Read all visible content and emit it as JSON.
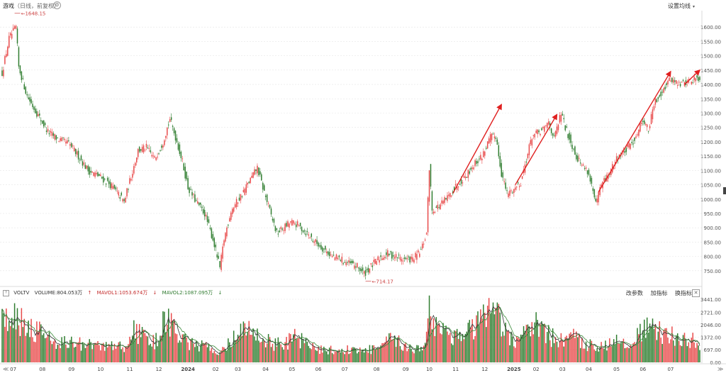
{
  "header": {
    "title": "游戏",
    "subtitle": "（日线，前复权）",
    "settings_label": "设置均线",
    "caret": "▾",
    "gear_glyph": "⚙"
  },
  "volume_legend": {
    "indicator_name": "VOLTV",
    "volume_text": "VOLUME:804.053万",
    "volume_arrow": "↑",
    "mavol1_text": "MAVOL1:1053.674万",
    "mavol1_arrow": "↓",
    "mavol2_text": "MAVOL2:1087.095万",
    "mavol2_arrow": "↓",
    "help_glyph": "?"
  },
  "volume_tools": {
    "change_params": "改参数",
    "add_indicator": "加指标",
    "swap_indicator": "换指标",
    "close_glyph": "✕"
  },
  "nav": {
    "left": "≪",
    "right": "≫"
  },
  "colors": {
    "up": "#e84a4a",
    "down": "#2f7d2f",
    "arrow": "#e02020",
    "grid": "#e6e6e6",
    "ma1": "#333333",
    "ma2": "#3a8a3a"
  },
  "chart_data": [
    {
      "type": "candlestick",
      "price_axis": {
        "ylim": [
          710,
          1650
        ],
        "ticks": [
          750,
          800,
          850,
          900,
          950,
          1000,
          1050,
          1100,
          1150,
          1200,
          1250,
          1300,
          1350,
          1400,
          1450,
          1500,
          1550,
          1600
        ],
        "tick_labels": [
          "750.00",
          "800.00",
          "850.00",
          "900.00",
          "950.00",
          "1000.00",
          "1050.00",
          "1100.00",
          "1150.00",
          "1200.00",
          "1250.00",
          "1300.00",
          "1350.00",
          "1400.00",
          "1450.00",
          "1500.00",
          "1550.00",
          "1600.00"
        ]
      },
      "time_axis": {
        "months": [
          {
            "label": "07",
            "idx": 8
          },
          {
            "label": "08",
            "idx": 29
          },
          {
            "label": "09",
            "idx": 50
          },
          {
            "label": "10",
            "idx": 71
          },
          {
            "label": "11",
            "idx": 92
          },
          {
            "label": "12",
            "idx": 113
          },
          {
            "label": "2024",
            "idx": 134
          },
          {
            "label": "02",
            "idx": 154
          },
          {
            "label": "03",
            "idx": 170
          },
          {
            "label": "04",
            "idx": 190
          },
          {
            "label": "05",
            "idx": 209
          },
          {
            "label": "06",
            "idx": 228
          },
          {
            "label": "07",
            "idx": 247
          },
          {
            "label": "08",
            "idx": 270
          },
          {
            "label": "09",
            "idx": 291
          },
          {
            "label": "10",
            "idx": 308
          },
          {
            "label": "11",
            "idx": 327
          },
          {
            "label": "12",
            "idx": 348
          },
          {
            "label": "2025",
            "idx": 369
          },
          {
            "label": "02",
            "idx": 385
          },
          {
            "label": "03",
            "idx": 404
          },
          {
            "label": "04",
            "idx": 423
          },
          {
            "label": "05",
            "idx": 443
          },
          {
            "label": "06",
            "idx": 462
          },
          {
            "label": "07",
            "idx": 482
          }
        ]
      },
      "close_keypoints": [
        [
          0,
          1440
        ],
        [
          5,
          1560
        ],
        [
          10,
          1600
        ],
        [
          12,
          1460
        ],
        [
          18,
          1360
        ],
        [
          25,
          1300
        ],
        [
          33,
          1235
        ],
        [
          40,
          1210
        ],
        [
          48,
          1195
        ],
        [
          55,
          1150
        ],
        [
          62,
          1100
        ],
        [
          70,
          1080
        ],
        [
          78,
          1050
        ],
        [
          85,
          1010
        ],
        [
          88,
          990
        ],
        [
          93,
          1080
        ],
        [
          98,
          1170
        ],
        [
          104,
          1180
        ],
        [
          110,
          1140
        ],
        [
          116,
          1200
        ],
        [
          121,
          1280
        ],
        [
          126,
          1200
        ],
        [
          130,
          1130
        ],
        [
          134,
          1040
        ],
        [
          140,
          990
        ],
        [
          146,
          950
        ],
        [
          152,
          860
        ],
        [
          157,
          760
        ],
        [
          160,
          860
        ],
        [
          165,
          960
        ],
        [
          172,
          1010
        ],
        [
          178,
          1060
        ],
        [
          184,
          1110
        ],
        [
          188,
          1040
        ],
        [
          193,
          960
        ],
        [
          198,
          880
        ],
        [
          203,
          900
        ],
        [
          208,
          920
        ],
        [
          213,
          910
        ],
        [
          220,
          880
        ],
        [
          226,
          850
        ],
        [
          232,
          825
        ],
        [
          238,
          800
        ],
        [
          244,
          790
        ],
        [
          250,
          775
        ],
        [
          256,
          765
        ],
        [
          261,
          740
        ],
        [
          266,
          765
        ],
        [
          272,
          795
        ],
        [
          278,
          810
        ],
        [
          284,
          800
        ],
        [
          290,
          790
        ],
        [
          296,
          790
        ],
        [
          302,
          820
        ],
        [
          306,
          880
        ],
        [
          308,
          1110
        ],
        [
          310,
          960
        ],
        [
          316,
          980
        ],
        [
          322,
          1010
        ],
        [
          328,
          1050
        ],
        [
          334,
          1080
        ],
        [
          340,
          1120
        ],
        [
          346,
          1150
        ],
        [
          352,
          1215
        ],
        [
          356,
          1220
        ],
        [
          360,
          1090
        ],
        [
          364,
          1020
        ],
        [
          368,
          1030
        ],
        [
          374,
          1060
        ],
        [
          378,
          1140
        ],
        [
          382,
          1220
        ],
        [
          386,
          1230
        ],
        [
          390,
          1240
        ],
        [
          394,
          1270
        ],
        [
          398,
          1210
        ],
        [
          403,
          1300
        ],
        [
          406,
          1250
        ],
        [
          410,
          1200
        ],
        [
          414,
          1150
        ],
        [
          418,
          1120
        ],
        [
          422,
          1100
        ],
        [
          425,
          1050
        ],
        [
          428,
          980
        ],
        [
          432,
          1050
        ],
        [
          438,
          1090
        ],
        [
          444,
          1150
        ],
        [
          450,
          1170
        ],
        [
          456,
          1210
        ],
        [
          462,
          1280
        ],
        [
          466,
          1240
        ],
        [
          470,
          1330
        ],
        [
          476,
          1380
        ],
        [
          482,
          1420
        ],
        [
          488,
          1400
        ],
        [
          494,
          1410
        ],
        [
          500,
          1420
        ],
        [
          503,
          1425
        ]
      ],
      "annotations": [
        {
          "kind": "max",
          "label": "1648.15",
          "price": 1648.15,
          "idx": 9
        },
        {
          "kind": "min",
          "label": "714.17",
          "price": 714.17,
          "idx": 262
        }
      ],
      "trend_arrows": [
        {
          "from": [
            325,
            1020
          ],
          "to": [
            360,
            1330
          ]
        },
        {
          "from": [
            370,
            1050
          ],
          "to": [
            400,
            1295
          ]
        },
        {
          "from": [
            430,
            1025
          ],
          "to": [
            482,
            1445
          ]
        },
        {
          "from": [
            492,
            1400
          ],
          "to": [
            503,
            1450
          ]
        }
      ]
    },
    {
      "type": "bar",
      "title": "VOLTV",
      "ylim": [
        0,
        3441
      ],
      "ticks": [
        0,
        697,
        1372,
        2046,
        2721,
        3441
      ],
      "tick_labels": [
        "0.00",
        "697.00",
        "1372.00",
        "2046.00",
        "2721.00",
        "3441.00"
      ],
      "volume_keypoints": [
        [
          0,
          2600
        ],
        [
          10,
          2500
        ],
        [
          20,
          2000
        ],
        [
          30,
          1500
        ],
        [
          40,
          1150
        ],
        [
          50,
          1050
        ],
        [
          60,
          950
        ],
        [
          70,
          900
        ],
        [
          80,
          850
        ],
        [
          90,
          900
        ],
        [
          95,
          1700
        ],
        [
          100,
          1500
        ],
        [
          110,
          1100
        ],
        [
          118,
          2300
        ],
        [
          125,
          1900
        ],
        [
          130,
          1200
        ],
        [
          140,
          900
        ],
        [
          150,
          800
        ],
        [
          158,
          600
        ],
        [
          165,
          1100
        ],
        [
          172,
          1900
        ],
        [
          180,
          1600
        ],
        [
          188,
          1300
        ],
        [
          195,
          1050
        ],
        [
          205,
          1000
        ],
        [
          212,
          1500
        ],
        [
          220,
          900
        ],
        [
          230,
          700
        ],
        [
          240,
          650
        ],
        [
          250,
          700
        ],
        [
          260,
          650
        ],
        [
          270,
          750
        ],
        [
          280,
          1200
        ],
        [
          290,
          950
        ],
        [
          300,
          700
        ],
        [
          305,
          1200
        ],
        [
          308,
          2900
        ],
        [
          312,
          2100
        ],
        [
          320,
          1700
        ],
        [
          330,
          1400
        ],
        [
          340,
          1900
        ],
        [
          348,
          2400
        ],
        [
          355,
          2700
        ],
        [
          360,
          2000
        ],
        [
          365,
          1400
        ],
        [
          370,
          1100
        ],
        [
          376,
          1500
        ],
        [
          382,
          2200
        ],
        [
          388,
          1800
        ],
        [
          395,
          1400
        ],
        [
          402,
          1200
        ],
        [
          410,
          1400
        ],
        [
          418,
          1100
        ],
        [
          425,
          900
        ],
        [
          432,
          1000
        ],
        [
          440,
          1050
        ],
        [
          446,
          1300
        ],
        [
          452,
          1100
        ],
        [
          458,
          1400
        ],
        [
          463,
          1800
        ],
        [
          470,
          1700
        ],
        [
          478,
          1500
        ],
        [
          486,
          1400
        ],
        [
          494,
          1300
        ],
        [
          500,
          1100
        ],
        [
          503,
          1050
        ]
      ]
    }
  ]
}
